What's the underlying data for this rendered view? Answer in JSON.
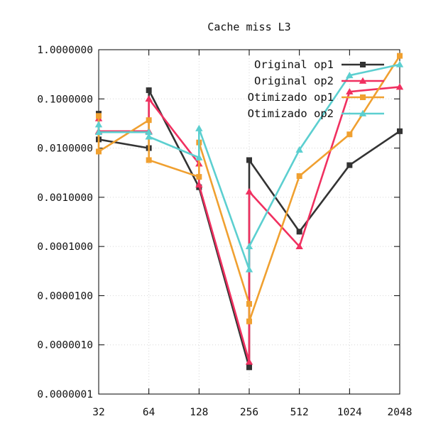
{
  "chart_data": {
    "type": "line",
    "title": "Cache miss L3",
    "xlabel": "",
    "ylabel": "",
    "y_scale": "log",
    "ylim": [
      1e-07,
      1
    ],
    "grid": true,
    "legend_position": "top-right",
    "categories": [
      "32",
      "64",
      "128",
      "256",
      "512",
      "1024",
      "2048"
    ],
    "y_ticks": [
      "1.0000000",
      "0.1000000",
      "0.0100000",
      "0.0010000",
      "0.0001000",
      "0.0000100",
      "0.0000010",
      "0.0000001"
    ],
    "series": [
      {
        "name": "Original op1",
        "color": "#333333",
        "marker": "square",
        "points": [
          {
            "x": "32",
            "y": 0.05
          },
          {
            "x": "32",
            "y": 0.015
          },
          {
            "x": "64",
            "y": 0.01
          },
          {
            "x": "64",
            "y": 0.15
          },
          {
            "x": "128",
            "y": 0.0016
          },
          {
            "x": "256",
            "y": 3.5e-07
          },
          {
            "x": "256",
            "y": 0.0057
          },
          {
            "x": "512",
            "y": 0.0002
          },
          {
            "x": "1024",
            "y": 0.0045
          },
          {
            "x": "2048",
            "y": 0.022
          }
        ]
      },
      {
        "name": "Original op2",
        "color": "#f03060",
        "marker": "triangle",
        "points": [
          {
            "x": "32",
            "y": 0.04
          },
          {
            "x": "32",
            "y": 0.022
          },
          {
            "x": "64",
            "y": 0.022
          },
          {
            "x": "64",
            "y": 0.1
          },
          {
            "x": "128",
            "y": 0.0048
          },
          {
            "x": "128",
            "y": 0.0018
          },
          {
            "x": "256",
            "y": 4.5e-07
          },
          {
            "x": "256",
            "y": 0.0013
          },
          {
            "x": "512",
            "y": 0.0001
          },
          {
            "x": "1024",
            "y": 0.14
          },
          {
            "x": "2048",
            "y": 0.175
          }
        ]
      },
      {
        "name": "Otimizado op1",
        "color": "#f0a030",
        "marker": "square",
        "points": [
          {
            "x": "32",
            "y": 0.045
          },
          {
            "x": "32",
            "y": 0.0085
          },
          {
            "x": "64",
            "y": 0.037
          },
          {
            "x": "64",
            "y": 0.0057
          },
          {
            "x": "128",
            "y": 0.0026
          },
          {
            "x": "128",
            "y": 0.013
          },
          {
            "x": "256",
            "y": 6.8e-06
          },
          {
            "x": "256",
            "y": 3e-06
          },
          {
            "x": "512",
            "y": 0.0027
          },
          {
            "x": "1024",
            "y": 0.019
          },
          {
            "x": "2048",
            "y": 0.75
          }
        ]
      },
      {
        "name": "Otimizado op2",
        "color": "#5ccfd0",
        "marker": "triangle",
        "points": [
          {
            "x": "32",
            "y": 0.03
          },
          {
            "x": "32",
            "y": 0.021
          },
          {
            "x": "64",
            "y": 0.021
          },
          {
            "x": "64",
            "y": 0.017
          },
          {
            "x": "128",
            "y": 0.0064
          },
          {
            "x": "128",
            "y": 0.025
          },
          {
            "x": "256",
            "y": 3.4e-05
          },
          {
            "x": "256",
            "y": 0.0001
          },
          {
            "x": "512",
            "y": 0.0092
          },
          {
            "x": "1024",
            "y": 0.3
          },
          {
            "x": "2048",
            "y": 0.5
          }
        ]
      }
    ]
  }
}
